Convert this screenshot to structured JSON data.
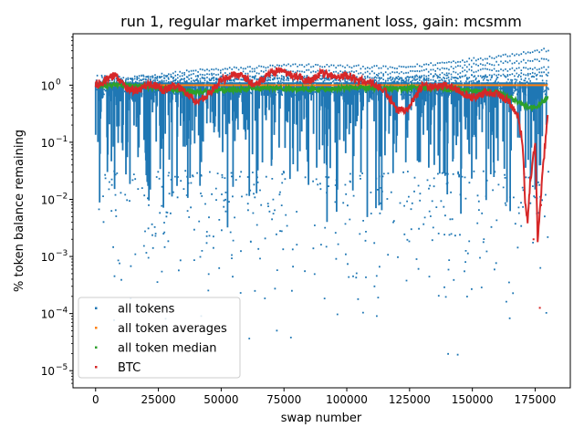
{
  "chart_data": {
    "type": "scatter",
    "title": "run 1, regular market impermanent loss, gain: mcsmm",
    "xlabel": "swap number",
    "ylabel": "% token balance remaining",
    "xlim": [
      -9000,
      189000
    ],
    "ylim_log10": [
      -5.3,
      0.9
    ],
    "y_scale": "log",
    "x_ticks": [
      0,
      25000,
      50000,
      75000,
      100000,
      125000,
      150000,
      175000
    ],
    "x_tick_labels": [
      "0",
      "25000",
      "50000",
      "75000",
      "100000",
      "125000",
      "150000",
      "175000"
    ],
    "y_ticks_log10": [
      -5,
      -4,
      -3,
      -2,
      -1,
      0
    ],
    "y_tick_labels": [
      {
        "base": "10",
        "exp": "−5"
      },
      {
        "base": "10",
        "exp": "−4"
      },
      {
        "base": "10",
        "exp": "−3"
      },
      {
        "base": "10",
        "exp": "−2"
      },
      {
        "base": "10",
        "exp": "−1"
      },
      {
        "base": "10",
        "exp": "0"
      }
    ],
    "grid": false,
    "legend_position": "lower-left",
    "series": [
      {
        "name": "all tokens",
        "color": "#1f77b4"
      },
      {
        "name": "all token averages",
        "color": "#ff7f0e"
      },
      {
        "name": "all token median",
        "color": "#2ca02c"
      },
      {
        "name": "BTC",
        "color": "#d62728"
      }
    ],
    "x_max_swap": 180000,
    "all_token_averages_value": 1.0,
    "btc_path": [
      [
        0,
        1.0
      ],
      [
        5000,
        1.3
      ],
      [
        8000,
        1.5
      ],
      [
        12000,
        0.9
      ],
      [
        17000,
        0.8
      ],
      [
        22000,
        1.1
      ],
      [
        27000,
        0.8
      ],
      [
        32000,
        1.0
      ],
      [
        37000,
        0.7
      ],
      [
        40000,
        0.5
      ],
      [
        45000,
        0.7
      ],
      [
        50000,
        1.2
      ],
      [
        55000,
        1.6
      ],
      [
        60000,
        1.3
      ],
      [
        63000,
        1.0
      ],
      [
        68000,
        1.4
      ],
      [
        72000,
        1.8
      ],
      [
        76000,
        1.6
      ],
      [
        80000,
        1.4
      ],
      [
        85000,
        1.2
      ],
      [
        90000,
        1.6
      ],
      [
        95000,
        1.4
      ],
      [
        100000,
        1.5
      ],
      [
        105000,
        1.2
      ],
      [
        110000,
        1.1
      ],
      [
        115000,
        0.8
      ],
      [
        118000,
        0.5
      ],
      [
        120000,
        0.35
      ],
      [
        124000,
        0.4
      ],
      [
        127000,
        0.6
      ],
      [
        130000,
        1.0
      ],
      [
        135000,
        0.9
      ],
      [
        140000,
        1.0
      ],
      [
        145000,
        0.8
      ],
      [
        150000,
        0.6
      ],
      [
        155000,
        0.75
      ],
      [
        160000,
        0.7
      ],
      [
        165000,
        0.5
      ],
      [
        168000,
        0.3
      ],
      [
        170000,
        0.1
      ],
      [
        171000,
        0.01
      ],
      [
        172000,
        0.004
      ],
      [
        173000,
        0.02
      ],
      [
        175000,
        0.1
      ],
      [
        176000,
        0.002
      ],
      [
        178000,
        0.03
      ],
      [
        180000,
        0.3
      ]
    ],
    "median_path": [
      [
        0,
        1.0
      ],
      [
        10000,
        1.0
      ],
      [
        20000,
        0.95
      ],
      [
        30000,
        0.85
      ],
      [
        40000,
        0.75
      ],
      [
        50000,
        0.8
      ],
      [
        60000,
        0.85
      ],
      [
        70000,
        0.9
      ],
      [
        80000,
        0.85
      ],
      [
        90000,
        0.85
      ],
      [
        100000,
        0.9
      ],
      [
        110000,
        0.9
      ],
      [
        120000,
        0.85
      ],
      [
        130000,
        0.9
      ],
      [
        140000,
        0.85
      ],
      [
        150000,
        0.8
      ],
      [
        160000,
        0.75
      ],
      [
        165000,
        0.6
      ],
      [
        170000,
        0.45
      ],
      [
        175000,
        0.4
      ],
      [
        180000,
        0.6
      ]
    ]
  }
}
